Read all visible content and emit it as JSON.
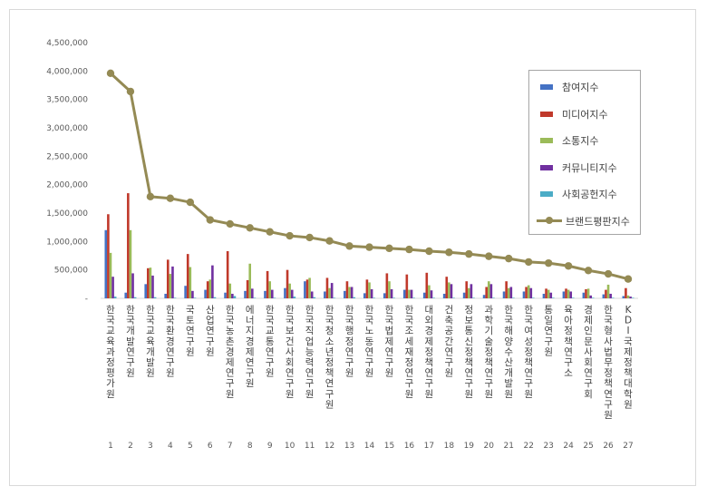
{
  "chart_data": {
    "type": "bar",
    "ylim": [
      0,
      4500000
    ],
    "yticks": [
      "-",
      "500,000",
      "1,000,000",
      "1,500,000",
      "2,000,000",
      "2,500,000",
      "3,000,000",
      "3,500,000",
      "4,000,000",
      "4,500,000"
    ],
    "grid": false,
    "legend_position": "right",
    "categories": [
      "한국교육과정평가원",
      "한국개발연구원",
      "한국교육개발원",
      "한국환경연구원",
      "국토연구원",
      "산업연구원",
      "한국농촌경제연구원",
      "에너지경제연구원",
      "한국교통연구원",
      "한국보건사회연구원",
      "한국직업능력연구원",
      "한국청소년정책연구원",
      "한국행정연구원",
      "한국노동연구원",
      "한국법제연구원",
      "한국조세재정연구원",
      "대외경제정책연구원",
      "건축공간연구원",
      "정보통신정책연구원",
      "과학기술정책연구원",
      "한국해양수산개발원",
      "한국여성정책연구원",
      "통일연구원",
      "육아정책연구소",
      "경제인문사회연구회",
      "한국형사법무정책연구원",
      "KDI국제정책대학원"
    ],
    "category_numbers": [
      "1",
      "2",
      "3",
      "4",
      "5",
      "6",
      "7",
      "8",
      "9",
      "10",
      "11",
      "12",
      "13",
      "14",
      "15",
      "16",
      "17",
      "18",
      "19",
      "20",
      "21",
      "22",
      "23",
      "24",
      "25",
      "26",
      "27"
    ],
    "series": [
      {
        "name": "참여지수",
        "kind": "bar",
        "color": "#4472c4",
        "values": [
          1200000,
          100000,
          250000,
          80000,
          220000,
          150000,
          100000,
          130000,
          130000,
          180000,
          300000,
          120000,
          130000,
          90000,
          90000,
          150000,
          100000,
          80000,
          100000,
          60000,
          120000,
          120000,
          80000,
          120000,
          100000,
          70000,
          40000
        ]
      },
      {
        "name": "미디어지수",
        "kind": "bar",
        "color": "#c0392b",
        "values": [
          1480000,
          1850000,
          530000,
          680000,
          780000,
          300000,
          830000,
          320000,
          480000,
          500000,
          330000,
          360000,
          300000,
          330000,
          440000,
          420000,
          450000,
          380000,
          300000,
          200000,
          300000,
          200000,
          170000,
          170000,
          160000,
          150000,
          180000
        ]
      },
      {
        "name": "소통지수",
        "kind": "bar",
        "color": "#9bbb59",
        "values": [
          800000,
          1200000,
          540000,
          430000,
          550000,
          330000,
          260000,
          610000,
          300000,
          260000,
          360000,
          180000,
          200000,
          280000,
          300000,
          150000,
          230000,
          280000,
          180000,
          300000,
          180000,
          230000,
          150000,
          150000,
          170000,
          240000,
          50000
        ]
      },
      {
        "name": "커뮤니티지수",
        "kind": "bar",
        "color": "#7030a0",
        "values": [
          380000,
          440000,
          400000,
          560000,
          130000,
          580000,
          80000,
          170000,
          150000,
          150000,
          120000,
          270000,
          200000,
          160000,
          160000,
          150000,
          140000,
          250000,
          250000,
          250000,
          200000,
          180000,
          100000,
          120000,
          50000,
          80000,
          30000
        ]
      },
      {
        "name": "사회공헌지수",
        "kind": "bar",
        "color": "#4bacc6",
        "values": [
          30000,
          20000,
          20000,
          10000,
          10000,
          20000,
          40000,
          10000,
          10000,
          30000,
          20000,
          10000,
          20000,
          10000,
          10000,
          10000,
          10000,
          10000,
          10000,
          10000,
          10000,
          10000,
          10000,
          10000,
          10000,
          10000,
          10000
        ]
      },
      {
        "name": "브랜드평판지수",
        "kind": "line",
        "color": "#948a54",
        "values": [
          3960000,
          3640000,
          1790000,
          1760000,
          1690000,
          1380000,
          1310000,
          1240000,
          1170000,
          1100000,
          1070000,
          1010000,
          920000,
          900000,
          880000,
          860000,
          830000,
          810000,
          780000,
          740000,
          700000,
          640000,
          620000,
          570000,
          490000,
          430000,
          340000
        ]
      }
    ]
  }
}
